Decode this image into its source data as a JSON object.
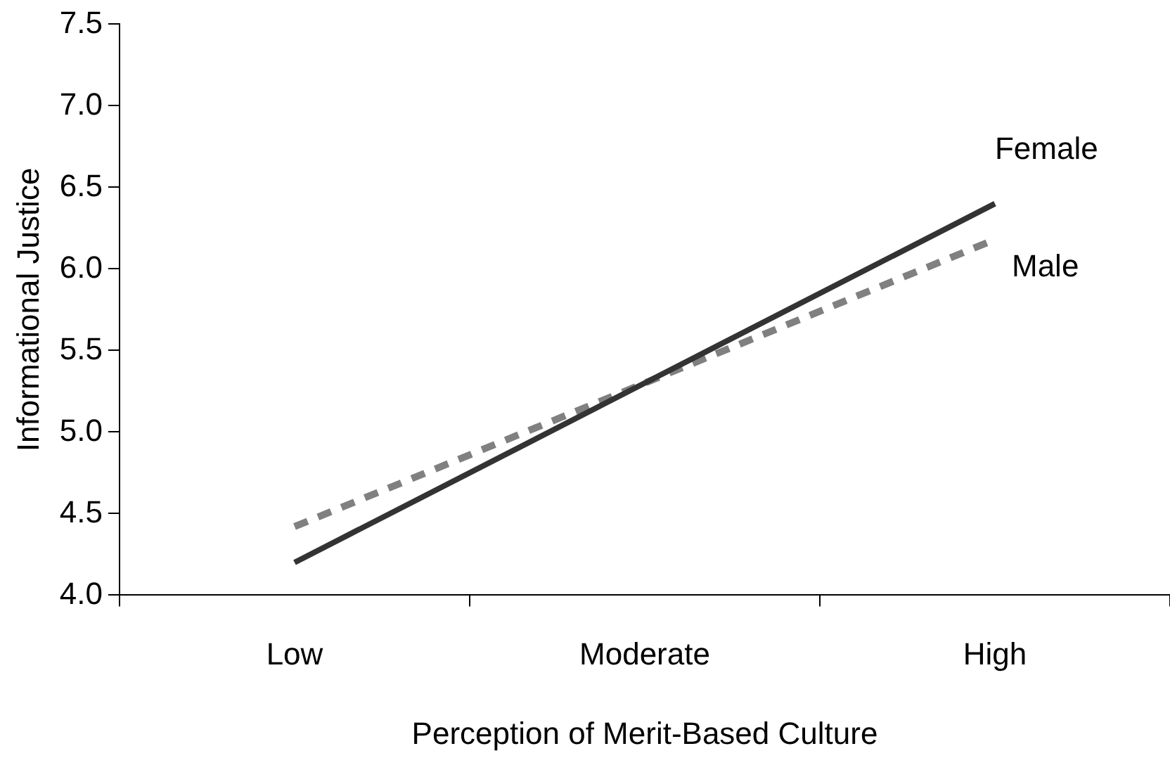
{
  "chart_data": {
    "type": "line",
    "xlabel": "Perception of Merit-Based Culture",
    "ylabel": "Informational Justice",
    "categories": [
      "Low",
      "Moderate",
      "High"
    ],
    "series": [
      {
        "name": "Female",
        "color": "#333333",
        "values": [
          4.2,
          5.3,
          6.4
        ],
        "line_style": "solid"
      },
      {
        "name": "Male",
        "color": "#808080",
        "values": [
          4.42,
          5.3,
          6.18
        ],
        "line_style": "dashed"
      }
    ],
    "ylim": [
      4,
      7.5
    ],
    "yticks": [
      {
        "value": 4,
        "label": "4.0"
      },
      {
        "value": 4.5,
        "label": "4.5"
      },
      {
        "value": 5,
        "label": "5.0"
      },
      {
        "value": 5.5,
        "label": "5.5"
      },
      {
        "value": 6,
        "label": "6.0"
      },
      {
        "value": 6.5,
        "label": "6.5"
      },
      {
        "value": 7,
        "label": "7.0"
      },
      {
        "value": 7.5,
        "label": "7.5"
      }
    ],
    "grid": false,
    "legend": false,
    "marker": "none"
  }
}
